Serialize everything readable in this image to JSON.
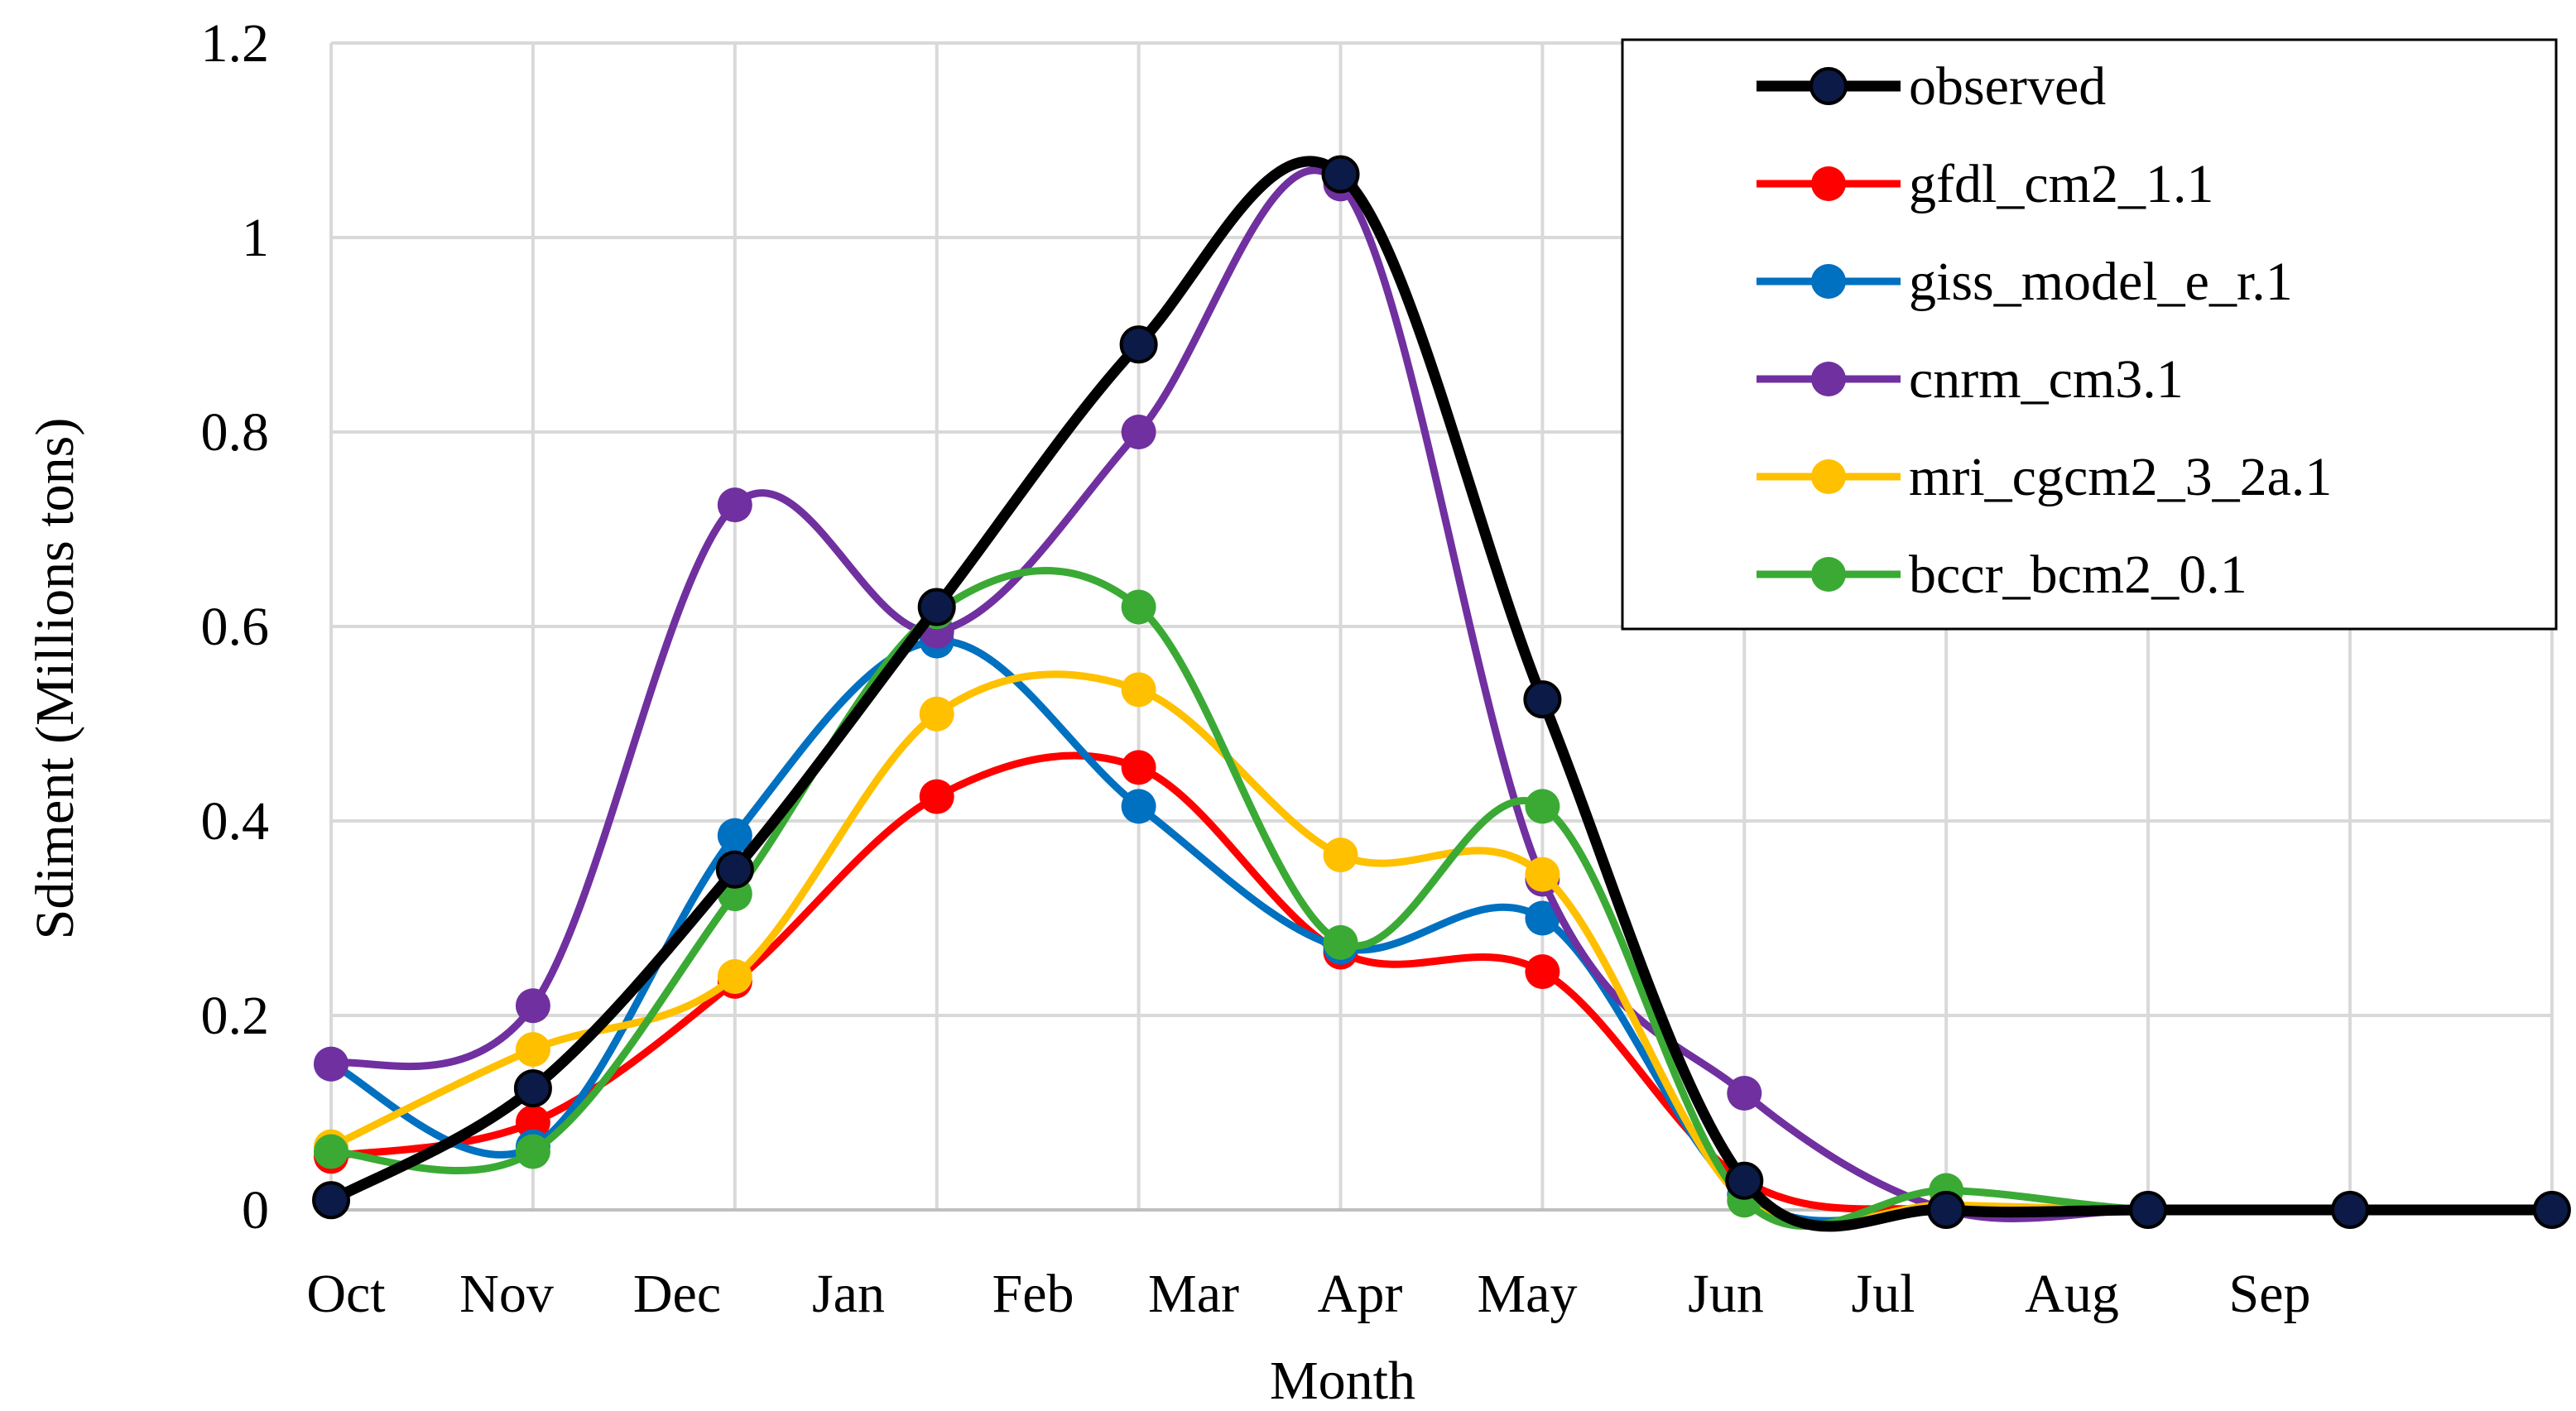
{
  "chart_data": {
    "type": "line",
    "title": "",
    "xlabel": "Month",
    "ylabel": "Sdiment (Millions tons)",
    "ylim": [
      0,
      1.2
    ],
    "yticks": [
      "0",
      "0.2",
      "0.4",
      "0.6",
      "0.8",
      "1",
      "1.2"
    ],
    "categories": [
      "Oct",
      "Nov",
      "Dec",
      "Jan",
      "Feb",
      "Mar",
      "Apr",
      "May",
      "Jun",
      "Jul",
      "Aug",
      "Sep"
    ],
    "grid": true,
    "legend_position": "top-right",
    "series": [
      {
        "name": "observed",
        "color": "#000000",
        "marker_color": "#0b1a46",
        "values": [
          0.01,
          0.125,
          0.35,
          0.62,
          0.89,
          1.065,
          0.525,
          0.03,
          0.0,
          0.0,
          0.0,
          0.0
        ]
      },
      {
        "name": "gfdl_cm2_1.1",
        "color": "#ff0000",
        "marker_color": "#ff0000",
        "values": [
          0.055,
          0.09,
          0.235,
          0.425,
          0.455,
          0.265,
          0.245,
          0.03,
          0.0,
          0.0,
          0.0,
          0.0
        ]
      },
      {
        "name": "giss_model_e_r.1",
        "color": "#0070c0",
        "marker_color": "#0070c0",
        "values": [
          0.15,
          0.065,
          0.385,
          0.585,
          0.415,
          0.27,
          0.3,
          0.015,
          0.0,
          0.0,
          0.0,
          0.0
        ]
      },
      {
        "name": "cnrm_cm3.1",
        "color": "#7030a0",
        "marker_color": "#7030a0",
        "values": [
          0.15,
          0.21,
          0.725,
          0.595,
          0.8,
          1.055,
          0.34,
          0.12,
          0.0,
          0.0,
          0.0,
          0.0
        ]
      },
      {
        "name": "mri_cgcm2_3_2a.1",
        "color": "#ffc000",
        "marker_color": "#ffc000",
        "values": [
          0.065,
          0.165,
          0.24,
          0.51,
          0.535,
          0.365,
          0.345,
          0.01,
          0.005,
          0.0,
          0.0,
          0.0
        ]
      },
      {
        "name": "bccr_bcm2_0.1",
        "color": "#3aaa35",
        "marker_color": "#3aaa35",
        "values": [
          0.06,
          0.06,
          0.325,
          0.615,
          0.62,
          0.275,
          0.415,
          0.01,
          0.02,
          0.0,
          0.0,
          0.0
        ]
      }
    ]
  }
}
